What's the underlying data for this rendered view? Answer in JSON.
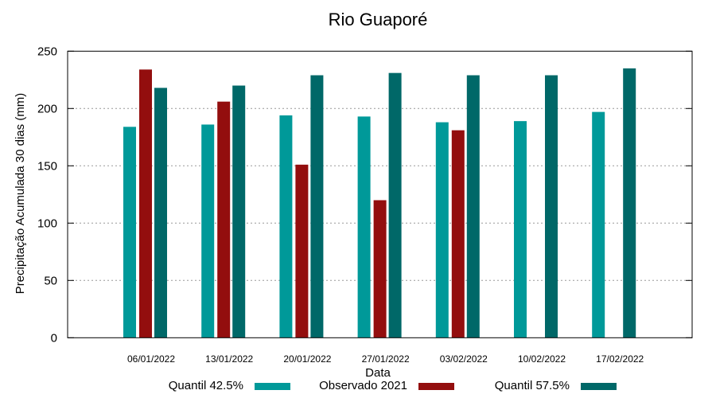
{
  "chart_data": {
    "type": "bar",
    "title": "Rio Guaporé",
    "xlabel": "Data",
    "ylabel": "Precipitação Acumulada 30 dias (mm)",
    "ylim": [
      0,
      250
    ],
    "yticks": [
      0,
      50,
      100,
      150,
      200,
      250
    ],
    "grid": true,
    "legend_position": "bottom",
    "categories": [
      "06/01/2022",
      "13/01/2022",
      "20/01/2022",
      "27/01/2022",
      "03/02/2022",
      "10/02/2022",
      "17/02/2022"
    ],
    "series": [
      {
        "name": "Quantil 42.5%",
        "color": "#009999",
        "values": [
          184,
          186,
          194,
          193,
          188,
          189,
          197
        ]
      },
      {
        "name": "Observado 2021",
        "color": "#930e0e",
        "values": [
          234,
          206,
          151,
          120,
          181,
          null,
          null
        ]
      },
      {
        "name": "Quantil 57.5%",
        "color": "#006868",
        "values": [
          218,
          220,
          229,
          231,
          229,
          229,
          235
        ]
      }
    ]
  }
}
